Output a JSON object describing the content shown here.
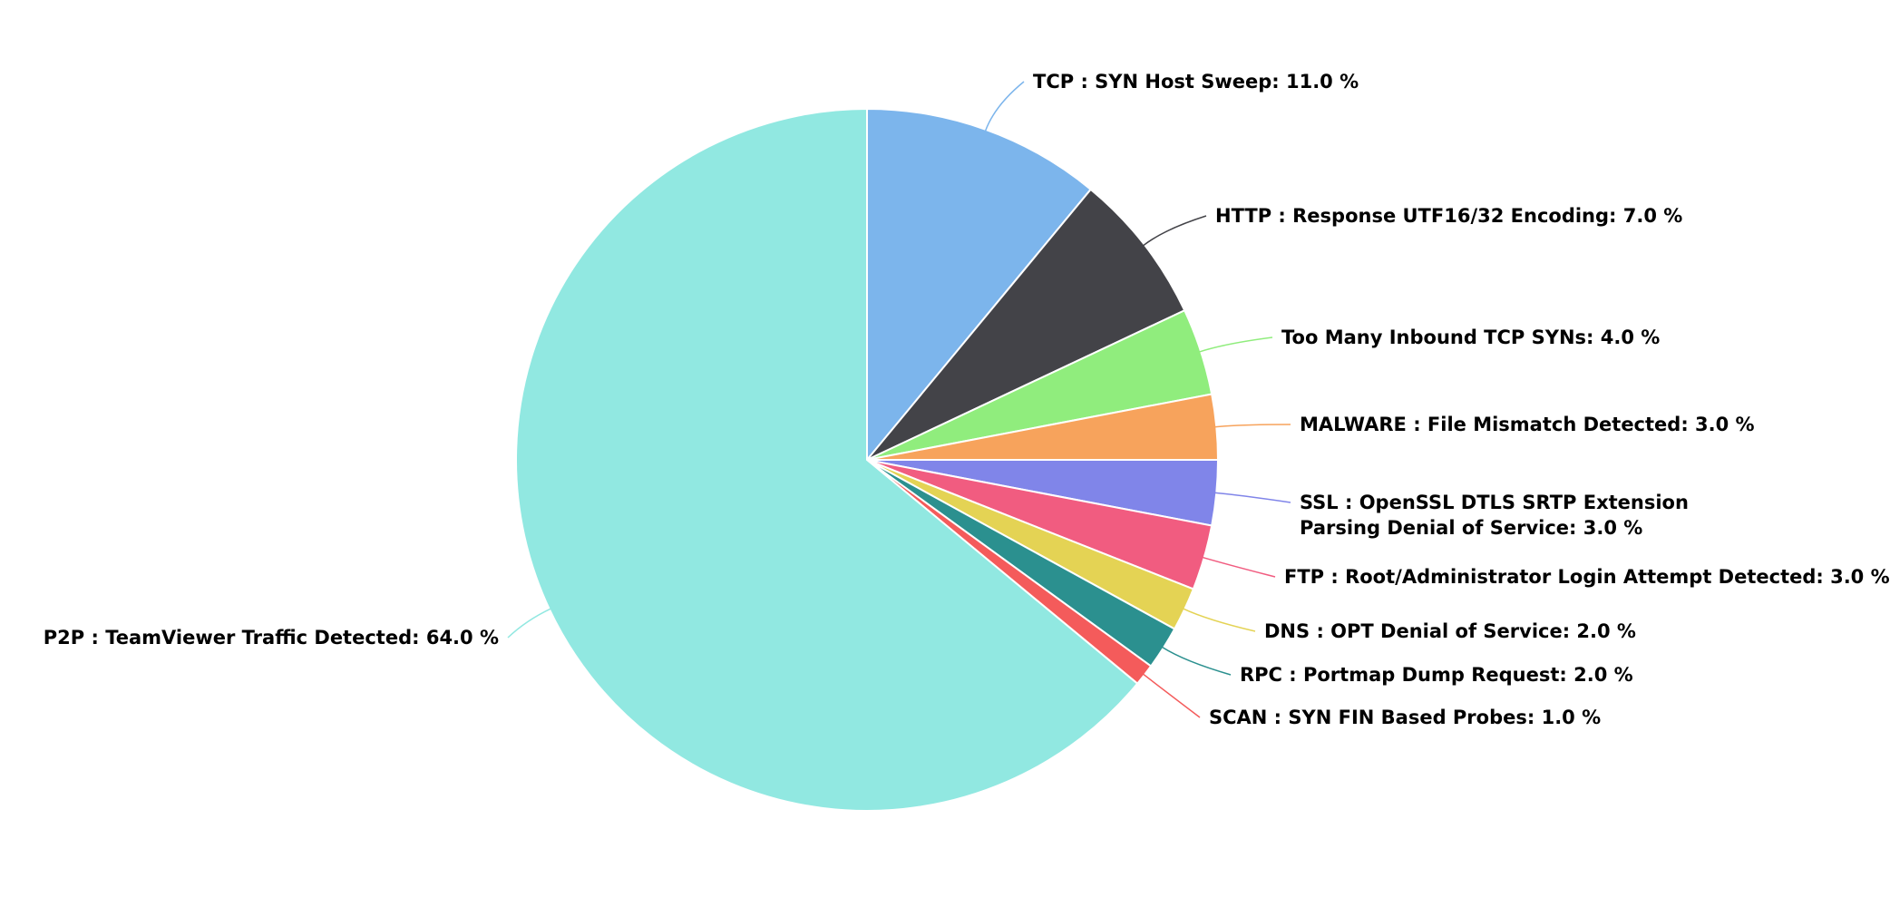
{
  "chart_data": {
    "type": "pie",
    "categories": [
      "TCP : SYN Host Sweep:",
      "HTTP : Response UTF16/32 Encoding:",
      "Too Many Inbound TCP SYNs:",
      "MALWARE : File Mismatch Detected:",
      "SSL : OpenSSL DTLS SRTP Extension Parsing Denial of Service:",
      "FTP : Root/Administrator Login Attempt Detected:",
      "DNS : OPT Denial of Service:",
      "RPC : Portmap Dump Request:",
      "SCAN : SYN FIN Based Probes:",
      "P2P : TeamViewer Traffic Detected:"
    ],
    "values": [
      11,
      7,
      4,
      3,
      3,
      3,
      2,
      2,
      1,
      64
    ],
    "value_labels": [
      "11.0 %",
      "7.0 %",
      "4.0 %",
      "3.0 %",
      "3.0 %",
      "3.0 %",
      "2.0 %",
      "2.0 %",
      "1.0 %",
      "64.0 %"
    ],
    "colors": [
      "#7cb5ec",
      "#434348",
      "#90ed7d",
      "#f7a35c",
      "#8085e9",
      "#f15c80",
      "#e4d354",
      "#2b908f",
      "#f45b5b",
      "#91e8e1"
    ]
  }
}
